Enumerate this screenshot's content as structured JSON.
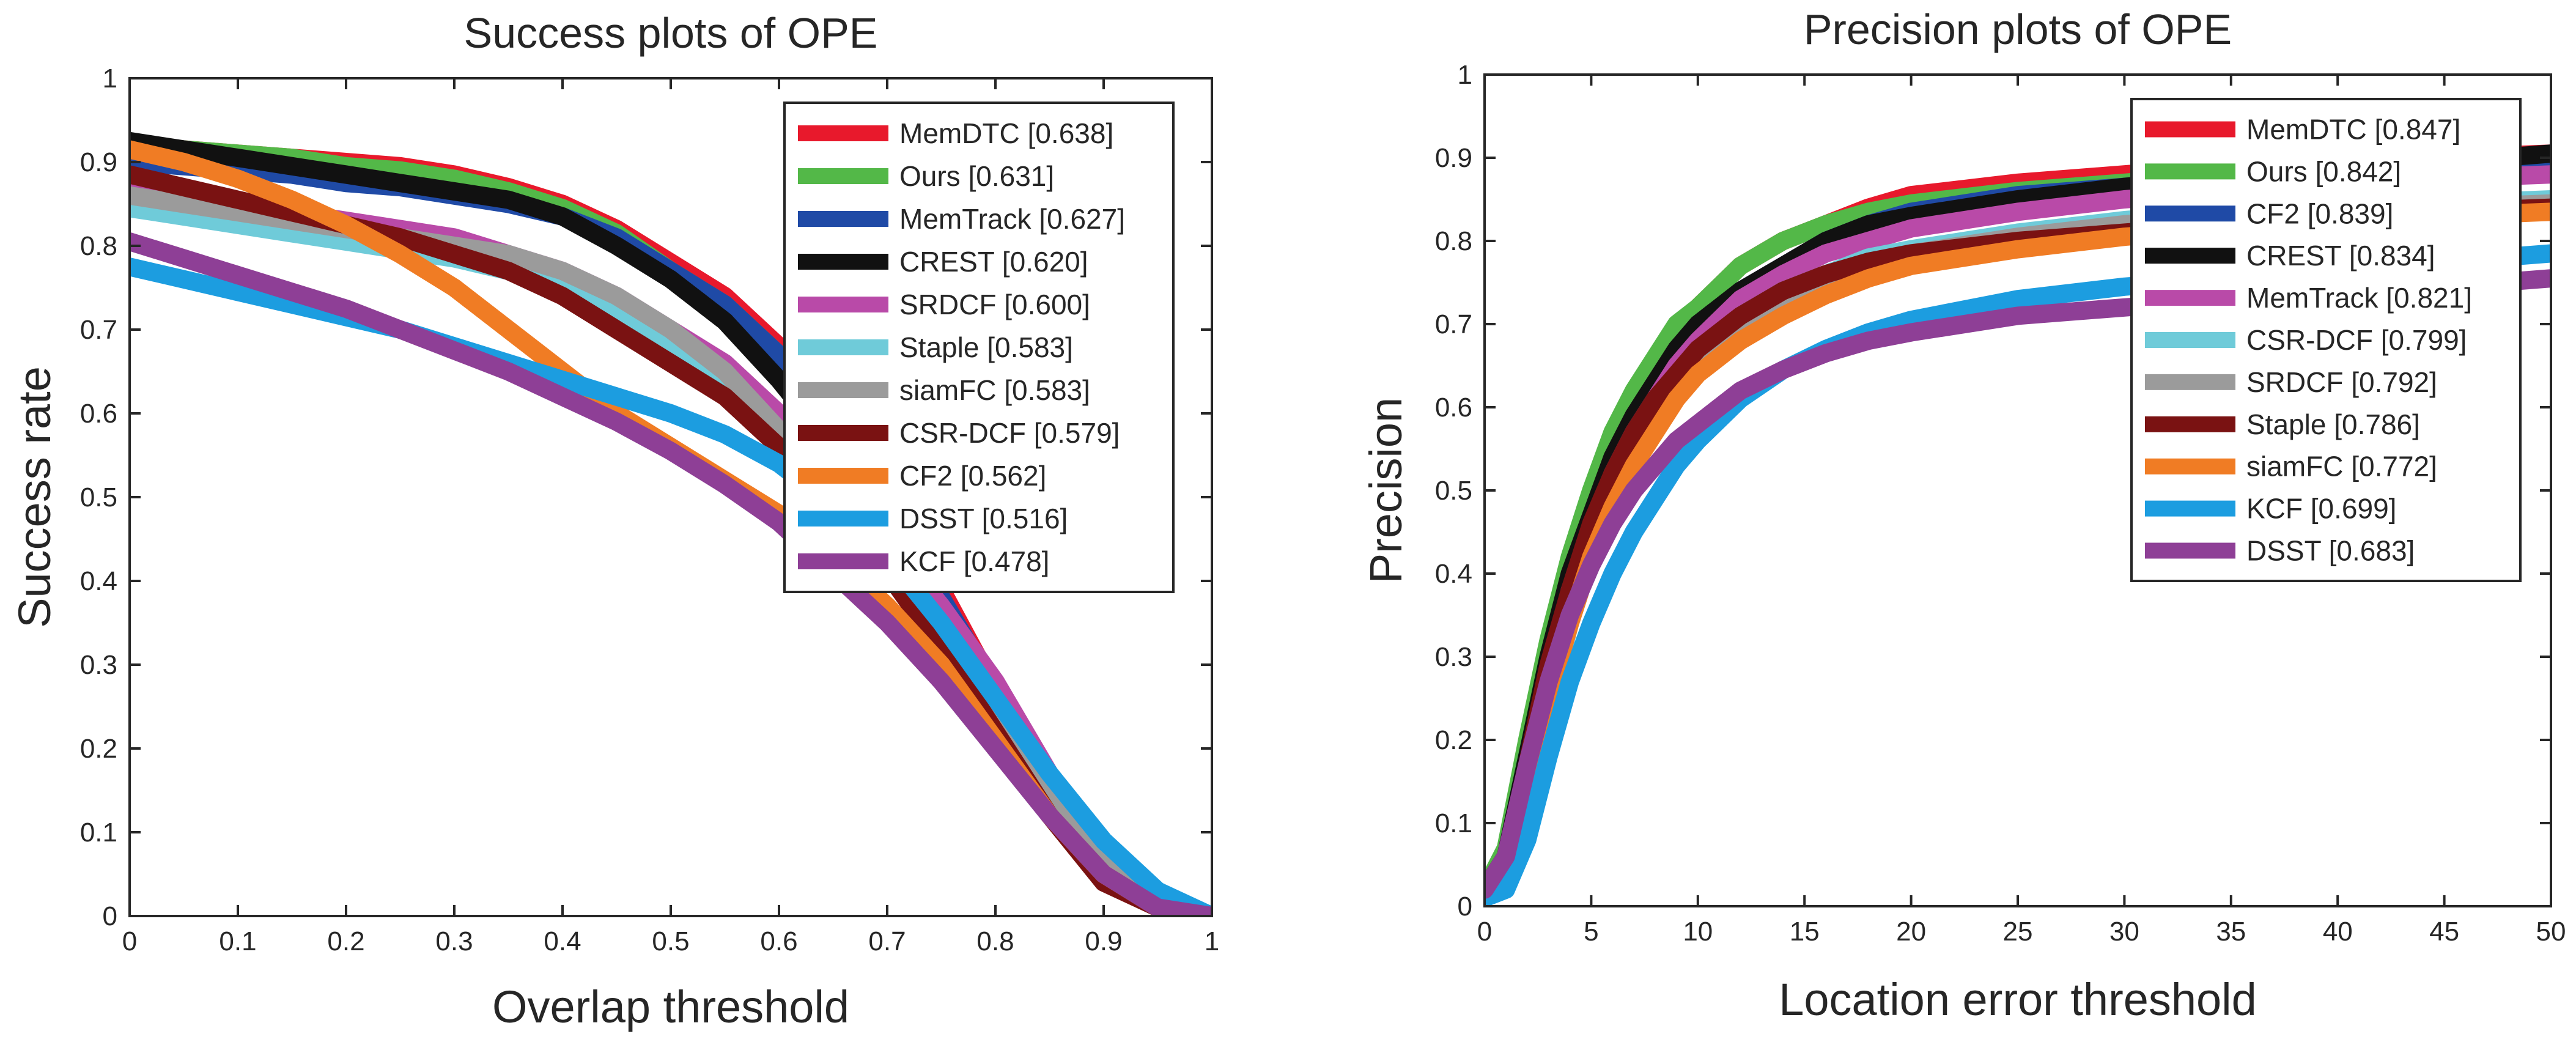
{
  "chart_data": [
    {
      "type": "line",
      "title": "Success plots of OPE",
      "xlabel": "Overlap threshold",
      "ylabel": "Success rate",
      "xlim": [
        0,
        1
      ],
      "ylim": [
        0,
        1
      ],
      "xticks": [
        "0",
        "0.1",
        "0.2",
        "0.3",
        "0.4",
        "0.5",
        "0.6",
        "0.7",
        "0.8",
        "0.9",
        "1"
      ],
      "yticks": [
        "0",
        "0.1",
        "0.2",
        "0.3",
        "0.4",
        "0.5",
        "0.6",
        "0.7",
        "0.8",
        "0.9",
        "1"
      ],
      "legend_position": "top-right",
      "x": [
        0,
        0.05,
        0.1,
        0.15,
        0.2,
        0.25,
        0.3,
        0.35,
        0.4,
        0.45,
        0.5,
        0.55,
        0.6,
        0.65,
        0.7,
        0.75,
        0.8,
        0.85,
        0.9,
        0.95,
        1
      ],
      "series": [
        {
          "name": "MemDTC",
          "score": "[0.638]",
          "color": "#e8192c",
          "values": [
            0.92,
            0.915,
            0.91,
            0.905,
            0.9,
            0.895,
            0.885,
            0.87,
            0.85,
            0.82,
            0.78,
            0.74,
            0.68,
            0.6,
            0.5,
            0.39,
            0.27,
            0.15,
            0.06,
            0.02,
            0.0
          ]
        },
        {
          "name": "Ours",
          "score": "[0.631]",
          "color": "#53b848",
          "values": [
            0.92,
            0.915,
            0.91,
            0.905,
            0.895,
            0.89,
            0.88,
            0.865,
            0.845,
            0.815,
            0.77,
            0.73,
            0.67,
            0.59,
            0.49,
            0.38,
            0.26,
            0.15,
            0.06,
            0.02,
            0.0
          ]
        },
        {
          "name": "MemTrack",
          "score": "[0.627]",
          "color": "#1f4aa6",
          "values": [
            0.9,
            0.895,
            0.89,
            0.885,
            0.875,
            0.87,
            0.86,
            0.85,
            0.835,
            0.81,
            0.77,
            0.73,
            0.67,
            0.59,
            0.49,
            0.38,
            0.27,
            0.16,
            0.07,
            0.02,
            0.0
          ]
        },
        {
          "name": "CREST",
          "score": "[0.620]",
          "color": "#111111",
          "values": [
            0.925,
            0.915,
            0.905,
            0.895,
            0.885,
            0.875,
            0.865,
            0.855,
            0.835,
            0.8,
            0.76,
            0.71,
            0.64,
            0.56,
            0.46,
            0.35,
            0.24,
            0.13,
            0.05,
            0.01,
            0.0
          ]
        },
        {
          "name": "SRDCF",
          "score": "[0.600]",
          "color": "#b94aa8",
          "values": [
            0.87,
            0.86,
            0.85,
            0.84,
            0.83,
            0.82,
            0.81,
            0.79,
            0.77,
            0.74,
            0.7,
            0.66,
            0.6,
            0.53,
            0.45,
            0.37,
            0.28,
            0.17,
            0.07,
            0.02,
            0.0
          ]
        },
        {
          "name": "Staple",
          "score": "[0.583]",
          "color": "#6fcbd9",
          "values": [
            0.845,
            0.835,
            0.825,
            0.815,
            0.805,
            0.795,
            0.785,
            0.77,
            0.75,
            0.72,
            0.68,
            0.64,
            0.58,
            0.51,
            0.43,
            0.34,
            0.25,
            0.15,
            0.06,
            0.02,
            0.0
          ]
        },
        {
          "name": "siamFC",
          "score": "[0.583]",
          "color": "#9b9b9b",
          "values": [
            0.86,
            0.85,
            0.84,
            0.83,
            0.82,
            0.81,
            0.8,
            0.79,
            0.77,
            0.74,
            0.7,
            0.65,
            0.58,
            0.5,
            0.42,
            0.33,
            0.24,
            0.14,
            0.06,
            0.02,
            0.0
          ]
        },
        {
          "name": "CSR-DCF",
          "score": "[0.579]",
          "color": "#7a1212",
          "values": [
            0.885,
            0.87,
            0.855,
            0.84,
            0.825,
            0.81,
            0.79,
            0.77,
            0.74,
            0.7,
            0.66,
            0.62,
            0.56,
            0.49,
            0.41,
            0.32,
            0.22,
            0.12,
            0.04,
            0.01,
            0.0
          ]
        },
        {
          "name": "CF2",
          "score": "[0.562]",
          "color": "#f07c24",
          "values": [
            0.915,
            0.9,
            0.88,
            0.855,
            0.825,
            0.79,
            0.75,
            0.7,
            0.65,
            0.6,
            0.56,
            0.52,
            0.48,
            0.43,
            0.37,
            0.3,
            0.21,
            0.12,
            0.05,
            0.01,
            0.0
          ]
        },
        {
          "name": "DSST",
          "score": "[0.516]",
          "color": "#1c9de0",
          "values": [
            0.775,
            0.76,
            0.745,
            0.73,
            0.715,
            0.7,
            0.68,
            0.66,
            0.64,
            0.62,
            0.6,
            0.575,
            0.54,
            0.49,
            0.43,
            0.35,
            0.26,
            0.17,
            0.09,
            0.03,
            0.0
          ]
        },
        {
          "name": "KCF",
          "score": "[0.478]",
          "color": "#8e3f96",
          "values": [
            0.805,
            0.785,
            0.765,
            0.745,
            0.725,
            0.7,
            0.675,
            0.65,
            0.62,
            0.59,
            0.555,
            0.515,
            0.47,
            0.41,
            0.35,
            0.28,
            0.2,
            0.12,
            0.05,
            0.01,
            0.0
          ]
        }
      ]
    },
    {
      "type": "line",
      "title": "Precision plots of OPE",
      "xlabel": "Location error threshold",
      "ylabel": "Precision",
      "xlim": [
        0,
        50
      ],
      "ylim": [
        0,
        1
      ],
      "xticks": [
        "0",
        "5",
        "10",
        "15",
        "20",
        "25",
        "30",
        "35",
        "40",
        "45",
        "50"
      ],
      "yticks": [
        "0",
        "0.1",
        "0.2",
        "0.3",
        "0.4",
        "0.5",
        "0.6",
        "0.7",
        "0.8",
        "0.9",
        "1"
      ],
      "legend_position": "top-right",
      "x": [
        0,
        1,
        2,
        3,
        4,
        5,
        6,
        7,
        8,
        9,
        10,
        12,
        14,
        16,
        18,
        20,
        25,
        30,
        35,
        40,
        45,
        50
      ],
      "series": [
        {
          "name": "MemDTC",
          "score": "[0.847]",
          "color": "#e8192c",
          "values": [
            0.02,
            0.06,
            0.18,
            0.3,
            0.4,
            0.48,
            0.55,
            0.6,
            0.65,
            0.69,
            0.72,
            0.77,
            0.8,
            0.82,
            0.84,
            0.855,
            0.87,
            0.88,
            0.89,
            0.895,
            0.9,
            0.905
          ]
        },
        {
          "name": "Ours",
          "score": "[0.842]",
          "color": "#53b848",
          "values": [
            0.02,
            0.07,
            0.2,
            0.32,
            0.42,
            0.5,
            0.57,
            0.62,
            0.66,
            0.7,
            0.72,
            0.77,
            0.8,
            0.82,
            0.835,
            0.845,
            0.86,
            0.87,
            0.88,
            0.885,
            0.89,
            0.895
          ]
        },
        {
          "name": "CF2",
          "score": "[0.839]",
          "color": "#1f4aa6",
          "values": [
            0.02,
            0.06,
            0.18,
            0.29,
            0.39,
            0.46,
            0.52,
            0.57,
            0.62,
            0.66,
            0.69,
            0.74,
            0.77,
            0.8,
            0.82,
            0.835,
            0.855,
            0.865,
            0.875,
            0.88,
            0.885,
            0.89
          ]
        },
        {
          "name": "CREST",
          "score": "[0.834]",
          "color": "#111111",
          "values": [
            0.02,
            0.06,
            0.18,
            0.3,
            0.4,
            0.47,
            0.54,
            0.59,
            0.63,
            0.67,
            0.7,
            0.74,
            0.77,
            0.8,
            0.82,
            0.83,
            0.85,
            0.865,
            0.875,
            0.885,
            0.895,
            0.905
          ]
        },
        {
          "name": "MemTrack",
          "score": "[0.821]",
          "color": "#b94aa8",
          "values": [
            0.02,
            0.05,
            0.16,
            0.28,
            0.38,
            0.45,
            0.52,
            0.57,
            0.61,
            0.65,
            0.68,
            0.73,
            0.76,
            0.785,
            0.8,
            0.815,
            0.835,
            0.85,
            0.86,
            0.87,
            0.875,
            0.88
          ]
        },
        {
          "name": "CSR-DCF",
          "score": "[0.799]",
          "color": "#6fcbd9",
          "values": [
            0.01,
            0.03,
            0.12,
            0.24,
            0.34,
            0.42,
            0.49,
            0.54,
            0.59,
            0.63,
            0.66,
            0.71,
            0.74,
            0.76,
            0.78,
            0.79,
            0.81,
            0.825,
            0.835,
            0.84,
            0.845,
            0.85
          ]
        },
        {
          "name": "SRDCF",
          "score": "[0.792]",
          "color": "#9b9b9b",
          "values": [
            0.02,
            0.05,
            0.15,
            0.27,
            0.37,
            0.44,
            0.5,
            0.55,
            0.59,
            0.62,
            0.65,
            0.7,
            0.73,
            0.755,
            0.77,
            0.785,
            0.805,
            0.82,
            0.83,
            0.835,
            0.84,
            0.845
          ]
        },
        {
          "name": "Staple",
          "score": "[0.786]",
          "color": "#7a1212",
          "values": [
            0.02,
            0.06,
            0.17,
            0.29,
            0.38,
            0.46,
            0.52,
            0.57,
            0.61,
            0.64,
            0.67,
            0.71,
            0.74,
            0.76,
            0.775,
            0.785,
            0.8,
            0.81,
            0.82,
            0.83,
            0.835,
            0.84
          ]
        },
        {
          "name": "siamFC",
          "score": "[0.772]",
          "color": "#f07c24",
          "values": [
            0.02,
            0.05,
            0.14,
            0.25,
            0.34,
            0.42,
            0.48,
            0.53,
            0.57,
            0.61,
            0.64,
            0.68,
            0.71,
            0.735,
            0.755,
            0.77,
            0.79,
            0.805,
            0.815,
            0.825,
            0.83,
            0.835
          ]
        },
        {
          "name": "KCF",
          "score": "[0.699]",
          "color": "#1c9de0",
          "values": [
            0.01,
            0.02,
            0.08,
            0.18,
            0.27,
            0.34,
            0.4,
            0.45,
            0.49,
            0.53,
            0.56,
            0.61,
            0.645,
            0.67,
            0.69,
            0.705,
            0.73,
            0.745,
            0.755,
            0.765,
            0.775,
            0.785
          ]
        },
        {
          "name": "DSST",
          "score": "[0.683]",
          "color": "#8e3f96",
          "values": [
            0.02,
            0.06,
            0.17,
            0.27,
            0.35,
            0.41,
            0.46,
            0.5,
            0.53,
            0.56,
            0.58,
            0.62,
            0.645,
            0.665,
            0.68,
            0.69,
            0.71,
            0.72,
            0.73,
            0.735,
            0.745,
            0.755
          ]
        }
      ]
    }
  ]
}
